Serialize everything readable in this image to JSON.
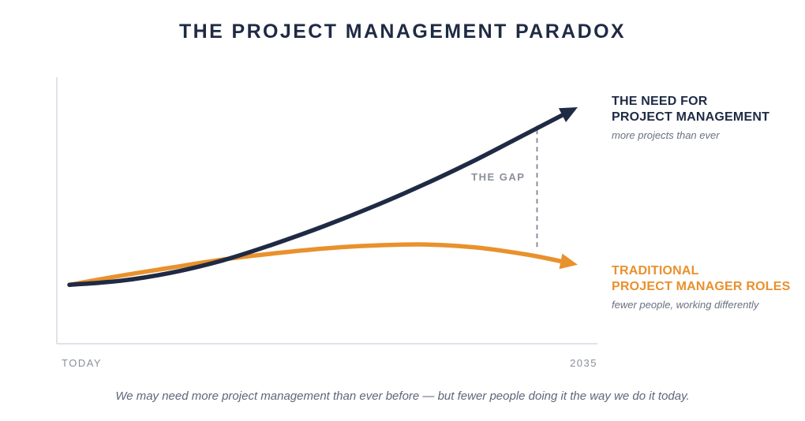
{
  "title": "THE PROJECT MANAGEMENT PARADOX",
  "caption": "We may need more project management than ever before — but fewer people doing it the way we do it today.",
  "chart_data": {
    "type": "line",
    "title": "THE PROJECT MANAGEMENT PARADOX",
    "x_tick_labels": [
      "TODAY",
      "2035"
    ],
    "xlim": [
      0,
      1
    ],
    "ylim": [
      0,
      1
    ],
    "grid": false,
    "series": [
      {
        "name_lines": [
          "THE NEED FOR",
          "PROJECT MANAGEMENT"
        ],
        "subtitle": "more projects than ever",
        "color": "#1f2a44",
        "x": [
          0,
          0.1,
          0.2,
          0.3,
          0.4,
          0.5,
          0.6,
          0.7,
          0.8,
          0.9,
          1.0
        ],
        "y": [
          0.12,
          0.14,
          0.18,
          0.24,
          0.32,
          0.41,
          0.51,
          0.62,
          0.74,
          0.87,
          1.0
        ]
      },
      {
        "name_lines": [
          "TRADITIONAL",
          "PROJECT MANAGER ROLES"
        ],
        "subtitle": "fewer people, working differently",
        "color": "#e8912d",
        "x": [
          0,
          0.1,
          0.2,
          0.3,
          0.4,
          0.5,
          0.6,
          0.7,
          0.8,
          0.9,
          1.0
        ],
        "y": [
          0.12,
          0.165,
          0.205,
          0.245,
          0.275,
          0.3,
          0.315,
          0.32,
          0.305,
          0.27,
          0.22
        ]
      }
    ],
    "annotations": [
      {
        "text": "THE GAP",
        "x": 0.92,
        "y_from": 0.3,
        "y_to": 0.91,
        "color": "#8a8f9c"
      }
    ]
  }
}
